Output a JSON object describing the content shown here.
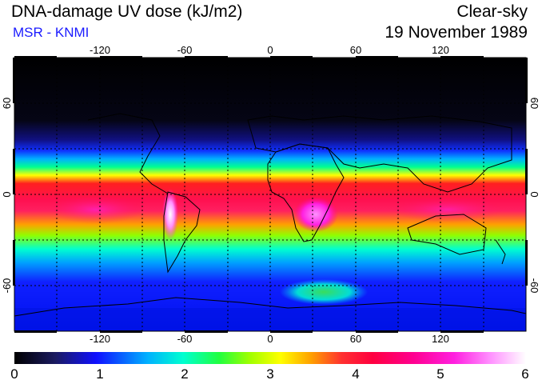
{
  "header": {
    "title": "DNA-damage UV dose (kJ/m2)",
    "source": "MSR - KNMI",
    "sky_condition": "Clear-sky",
    "date": "19 November 1989"
  },
  "colors": {
    "source_text": "#1a1aff",
    "colormap": [
      "#000000",
      "#1a1a60",
      "#1010ff",
      "#00b0ff",
      "#00ffd0",
      "#20ff40",
      "#a0ff00",
      "#ffff00",
      "#ffa000",
      "#ff3030",
      "#ff0040",
      "#ff0090",
      "#ff20e0",
      "#ff90ff",
      "#ffffff"
    ]
  },
  "map": {
    "longitude_ticks": [
      "-120",
      "-60",
      "0",
      "60",
      "120"
    ],
    "latitude_ticks": [
      "60",
      "0",
      "-60"
    ],
    "latitude_ticks_right": [
      "60",
      "0",
      "-60"
    ],
    "gridlines": "dotted"
  },
  "colorbar": {
    "min": 0,
    "max": 6,
    "labels": [
      "0",
      "1",
      "2",
      "3",
      "4",
      "5",
      "6"
    ]
  }
}
